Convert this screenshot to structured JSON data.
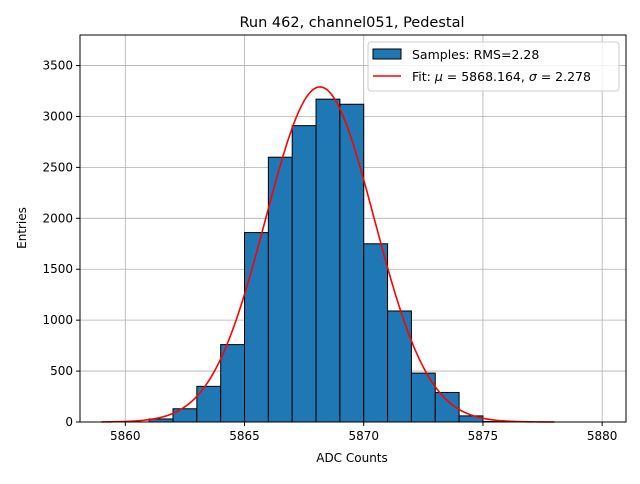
{
  "chart_data": {
    "type": "bar",
    "title": "Run 462, channel051, Pedestal",
    "xlabel": "ADC Counts",
    "ylabel": "Entries",
    "xlim": [
      5858.1,
      5881.0
    ],
    "ylim": [
      0,
      3800
    ],
    "xticks": [
      5860,
      5865,
      5870,
      5875,
      5880
    ],
    "yticks": [
      0,
      500,
      1000,
      1500,
      2000,
      2500,
      3000,
      3500
    ],
    "grid": true,
    "legend_position": "top-right",
    "bin_edges": [
      5861,
      5862,
      5863,
      5864,
      5865,
      5866,
      5867,
      5868,
      5869,
      5870,
      5871,
      5872,
      5873,
      5874,
      5875,
      5876
    ],
    "values": [
      30,
      130,
      350,
      760,
      1860,
      2600,
      2910,
      3170,
      3120,
      1750,
      1090,
      480,
      290,
      60,
      5
    ],
    "series": [
      {
        "name": "Samples: RMS=2.28",
        "type": "histogram",
        "color": "#1f77b4"
      },
      {
        "name": "Fit: μ = 5868.164, σ = 2.278",
        "type": "line",
        "color": "#ff0000",
        "mu": 5868.164,
        "sigma": 2.278,
        "amplitude": 3290,
        "x_range": [
          5859,
          5878
        ]
      }
    ],
    "legend": {
      "samples_prefix": "Samples: RMS=2.28",
      "fit_label": "Fit: ",
      "mu_symbol": "μ",
      "mu_text": " = 5868.164, ",
      "sigma_symbol": "σ",
      "sigma_text": " = 2.278"
    }
  }
}
